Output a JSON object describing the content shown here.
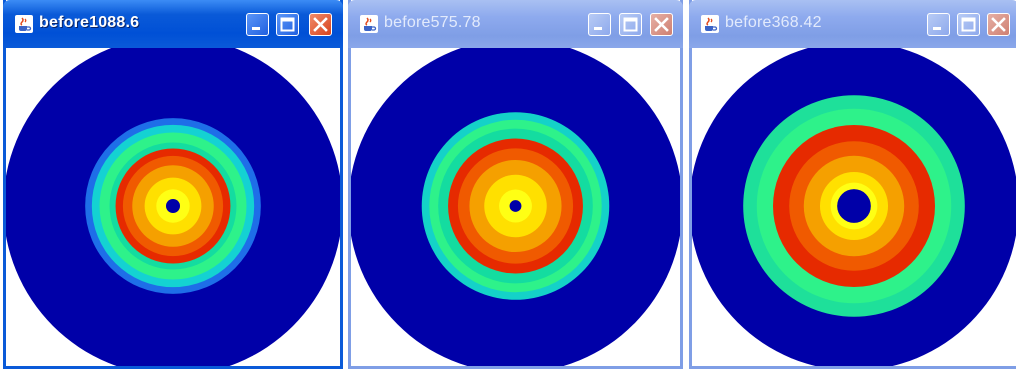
{
  "windows": [
    {
      "title": "before1088.6",
      "active": true,
      "rings": [
        {
          "r": 0.508,
          "color": "#0000a8"
        },
        {
          "r": 0.263,
          "color": "#1e6ee8"
        },
        {
          "r": 0.243,
          "color": "#14d2d2"
        },
        {
          "r": 0.22,
          "color": "#2ef28a"
        },
        {
          "r": 0.19,
          "color": "#14dca0"
        },
        {
          "r": 0.172,
          "color": "#e62a00"
        },
        {
          "r": 0.15,
          "color": "#f05a00"
        },
        {
          "r": 0.122,
          "color": "#f5a000"
        },
        {
          "r": 0.085,
          "color": "#ffe000"
        },
        {
          "r": 0.05,
          "color": "#ffff14"
        },
        {
          "r": 0.021,
          "color": "#0000a8"
        }
      ]
    },
    {
      "title": "before575.78",
      "active": false,
      "rings": [
        {
          "r": 0.508,
          "color": "#0000a8"
        },
        {
          "r": 0.285,
          "color": "#14d2c8"
        },
        {
          "r": 0.262,
          "color": "#2ef28a"
        },
        {
          "r": 0.235,
          "color": "#14dca0"
        },
        {
          "r": 0.205,
          "color": "#e62a00"
        },
        {
          "r": 0.175,
          "color": "#f05a00"
        },
        {
          "r": 0.14,
          "color": "#f5a000"
        },
        {
          "r": 0.095,
          "color": "#ffe000"
        },
        {
          "r": 0.05,
          "color": "#ffff14"
        },
        {
          "r": 0.018,
          "color": "#0000a8"
        }
      ]
    },
    {
      "title": "before368.42",
      "active": false,
      "rings": [
        {
          "r": 0.508,
          "color": "#0000a8"
        },
        {
          "r": 0.342,
          "color": "#1ee09a"
        },
        {
          "r": 0.3,
          "color": "#2ef28a"
        },
        {
          "r": 0.25,
          "color": "#e62a00"
        },
        {
          "r": 0.2,
          "color": "#f05a00"
        },
        {
          "r": 0.155,
          "color": "#f5a000"
        },
        {
          "r": 0.105,
          "color": "#ffe000"
        },
        {
          "r": 0.072,
          "color": "#ffff14"
        },
        {
          "r": 0.052,
          "color": "#0000a8"
        }
      ]
    }
  ]
}
